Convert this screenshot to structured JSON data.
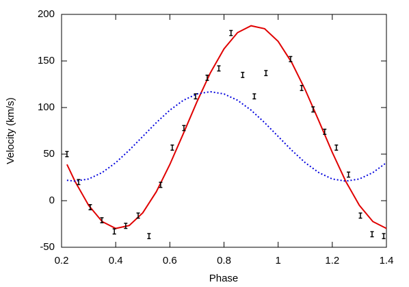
{
  "chart_data": {
    "type": "scatter",
    "x_label": "Phase",
    "y_label": "Velocity (km/s)",
    "xlim": [
      0.2,
      1.4
    ],
    "ylim": [
      -50,
      200
    ],
    "xticks": [
      0.2,
      0.4,
      0.6,
      0.8,
      1,
      1.2,
      1.4
    ],
    "yticks": [
      -50,
      0,
      50,
      100,
      150,
      200
    ],
    "grid": false,
    "series": [
      {
        "type": "line",
        "style": "solid",
        "color": "#e00000",
        "x": [
          0.22,
          0.25,
          0.3,
          0.35,
          0.4,
          0.45,
          0.5,
          0.55,
          0.6,
          0.65,
          0.7,
          0.75,
          0.8,
          0.85,
          0.9,
          0.95,
          1.0,
          1.05,
          1.1,
          1.15,
          1.2,
          1.25,
          1.3,
          1.35,
          1.4
        ],
        "values": [
          38.9,
          20.6,
          -5.0,
          -22.4,
          -29.8,
          -26.6,
          -13.0,
          9.6,
          38.9,
          72.1,
          106.1,
          137.4,
          163.0,
          180.4,
          187.8,
          184.6,
          171.0,
          148.4,
          119.1,
          85.9,
          51.9,
          20.6,
          -5.0,
          -22.4,
          -29.8
        ]
      },
      {
        "type": "line",
        "style": "dotted",
        "color": "#0000dd",
        "x": [
          0.22,
          0.25,
          0.3,
          0.35,
          0.4,
          0.45,
          0.5,
          0.55,
          0.6,
          0.65,
          0.7,
          0.75,
          0.8,
          0.85,
          0.9,
          0.95,
          1.0,
          1.05,
          1.1,
          1.15,
          1.2,
          1.25,
          1.3,
          1.35,
          1.4
        ],
        "values": [
          21.9,
          21,
          23.3,
          30.2,
          40.8,
          54.2,
          69,
          83.8,
          97.2,
          107.8,
          114.6,
          117,
          114.6,
          107.8,
          97.2,
          83.8,
          69,
          54.2,
          40.8,
          30.2,
          23.3,
          21,
          23.3,
          30.2,
          40.8
        ]
      },
      {
        "type": "scatter",
        "color": "#000000",
        "x": [
          0.22,
          0.263,
          0.306,
          0.349,
          0.395,
          0.437,
          0.483,
          0.523,
          0.566,
          0.609,
          0.652,
          0.695,
          0.738,
          0.781,
          0.826,
          0.869,
          0.912,
          0.955,
          1.046,
          1.087,
          1.129,
          1.172,
          1.215,
          1.26,
          1.304,
          1.347,
          1.39
        ],
        "values": [
          50,
          20,
          -7,
          -21,
          -33,
          -27,
          -16,
          -38,
          17,
          57,
          78,
          112,
          132,
          142,
          180,
          135,
          112,
          137,
          152,
          121,
          98,
          74,
          57,
          28,
          -16,
          -36,
          -38
        ],
        "errors": [
          2,
          2,
          2,
          2,
          2,
          2,
          2,
          2,
          2,
          2,
          2,
          2,
          2,
          2,
          2,
          2,
          2,
          2,
          2,
          2,
          2,
          2,
          2,
          2,
          2,
          2,
          2
        ]
      }
    ]
  }
}
